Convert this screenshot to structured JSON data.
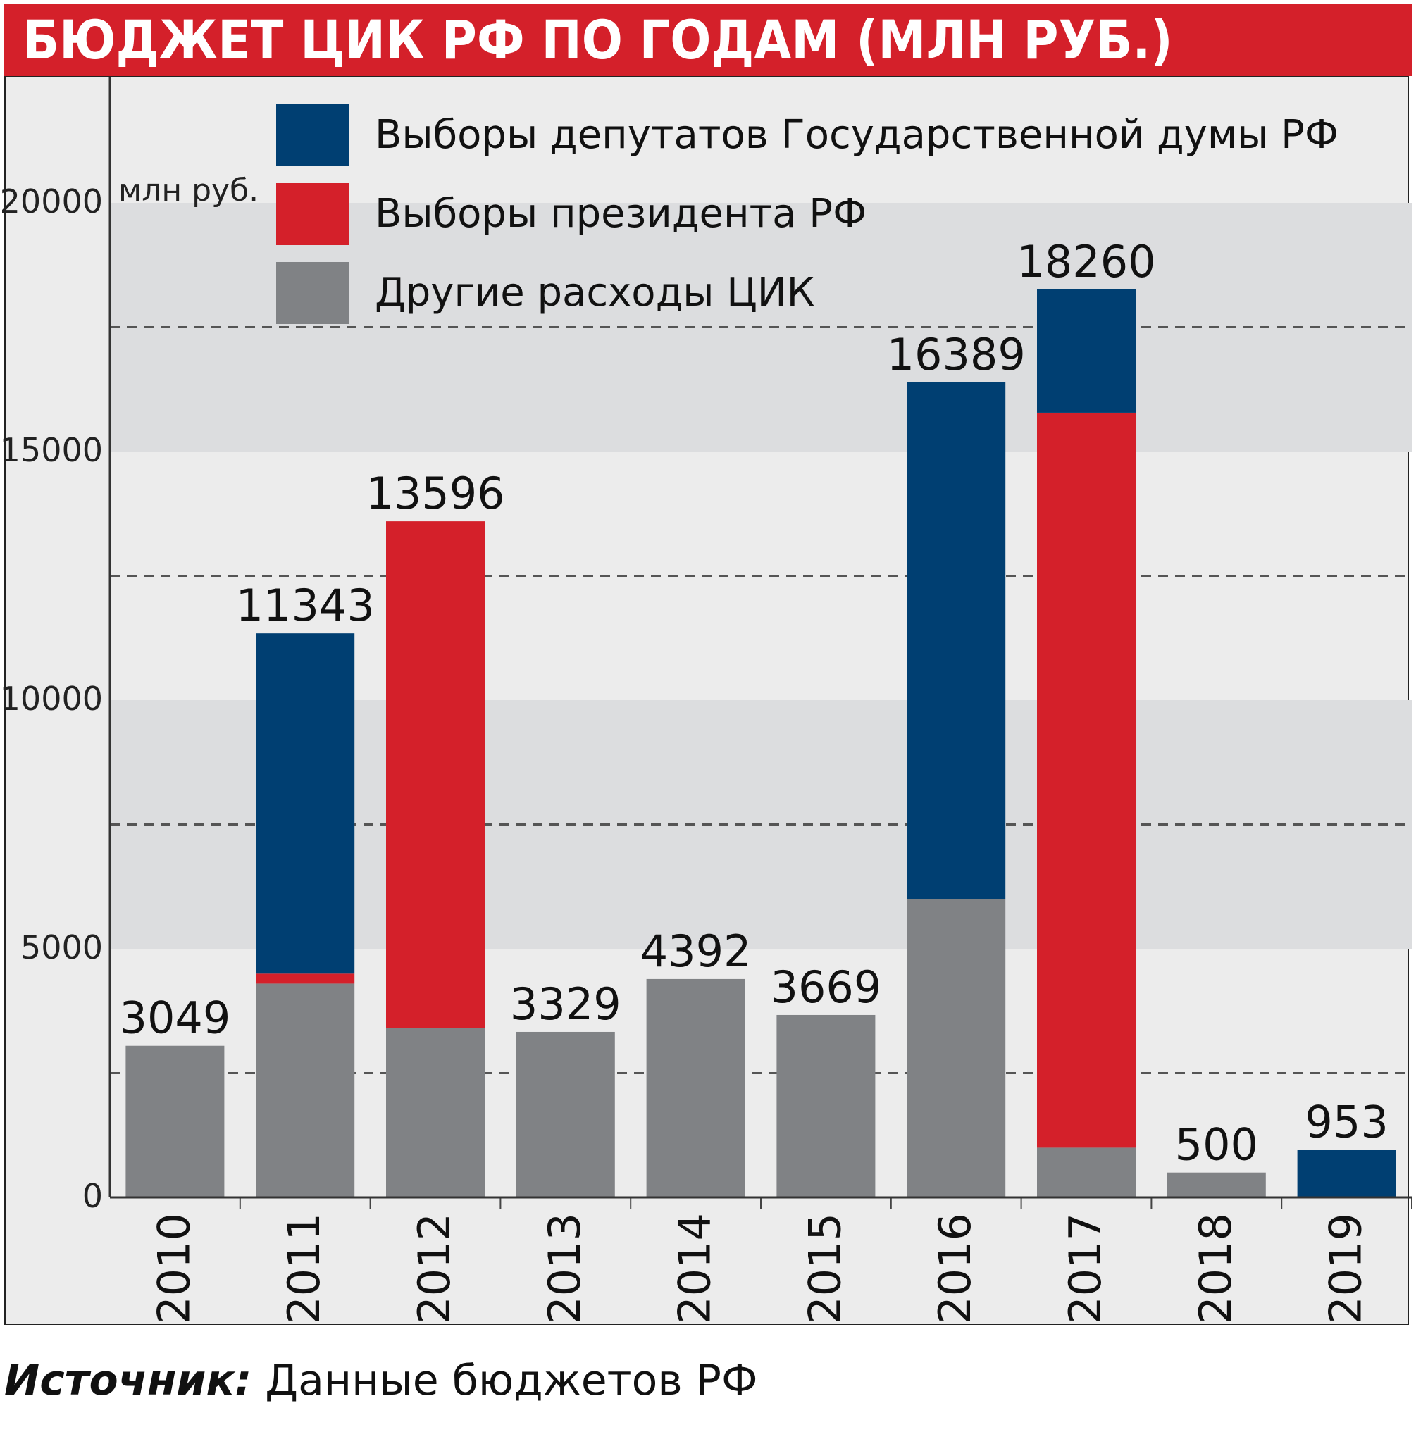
{
  "title": "БЮДЖЕТ ЦИК РФ ПО ГОДАМ (МЛН РУБ.)",
  "source": {
    "label": "Источник:",
    "text": "Данные бюджетов РФ"
  },
  "chart_data": {
    "type": "bar",
    "stacked": true,
    "ylabel": "млн руб.",
    "xlabel": "",
    "ylim": [
      0,
      20000
    ],
    "yticks": [
      "0",
      "5000",
      "10000",
      "15000",
      "20000"
    ],
    "grid": "alternating bands every 5000, dashed lines at midpoints",
    "legend_position": "top",
    "categories": [
      "2010",
      "2011",
      "2012",
      "2013",
      "2014",
      "2015",
      "2016",
      "2017",
      "2018",
      "2019"
    ],
    "series": [
      {
        "name": "Другие расходы ЦИК",
        "color": "#808285",
        "values": [
          3049,
          4300,
          3400,
          3329,
          4392,
          3669,
          6000,
          1000,
          500,
          0
        ]
      },
      {
        "name": "Выборы президента РФ",
        "color": "#d4202a",
        "values": [
          0,
          200,
          10196,
          0,
          0,
          0,
          0,
          14780,
          0,
          0
        ]
      },
      {
        "name": "Выборы депутатов Государственной думы РФ",
        "color": "#003f72",
        "values": [
          0,
          6843,
          0,
          0,
          0,
          0,
          10389,
          2480,
          0,
          953
        ]
      }
    ],
    "legend_order": [
      "Выборы депутатов Государственной думы РФ",
      "Выборы президента РФ",
      "Другие расходы ЦИК"
    ],
    "totals": [
      3049,
      11343,
      13596,
      3329,
      4392,
      3669,
      16389,
      18260,
      500,
      953
    ],
    "total_labels": [
      "3049",
      "11343",
      "13596",
      "3329",
      "4392",
      "3669",
      "16389",
      "18260",
      "500",
      "953"
    ]
  }
}
